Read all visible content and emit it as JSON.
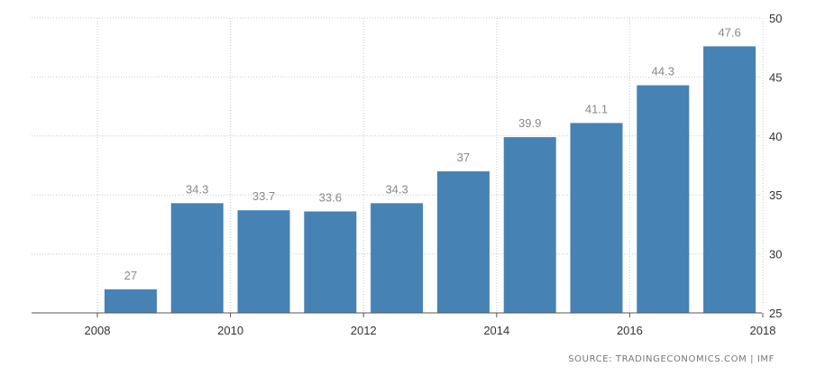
{
  "chart_data": {
    "type": "bar",
    "categories": [
      "2008",
      "2009",
      "2010",
      "2011",
      "2012",
      "2013",
      "2014",
      "2015",
      "2016",
      "2017"
    ],
    "values": [
      27,
      34.3,
      33.7,
      33.6,
      34.3,
      37,
      39.9,
      41.1,
      44.3,
      47.6
    ],
    "value_labels": [
      "27",
      "34.3",
      "33.7",
      "33.6",
      "34.3",
      "37",
      "39.9",
      "41.1",
      "44.3",
      "47.6"
    ],
    "x_tick_labels": [
      "2008",
      "2010",
      "2012",
      "2014",
      "2016",
      "2018"
    ],
    "y_tick_labels": [
      "25",
      "30",
      "35",
      "40",
      "45",
      "50"
    ],
    "ylim": [
      25,
      50
    ],
    "yaxis_side": "right",
    "grid": "dotted",
    "bar_color": "#4682b4",
    "title": "",
    "xlabel": "",
    "ylabel": ""
  },
  "source": "SOURCE: TRADINGECONOMICS.COM | IMF"
}
